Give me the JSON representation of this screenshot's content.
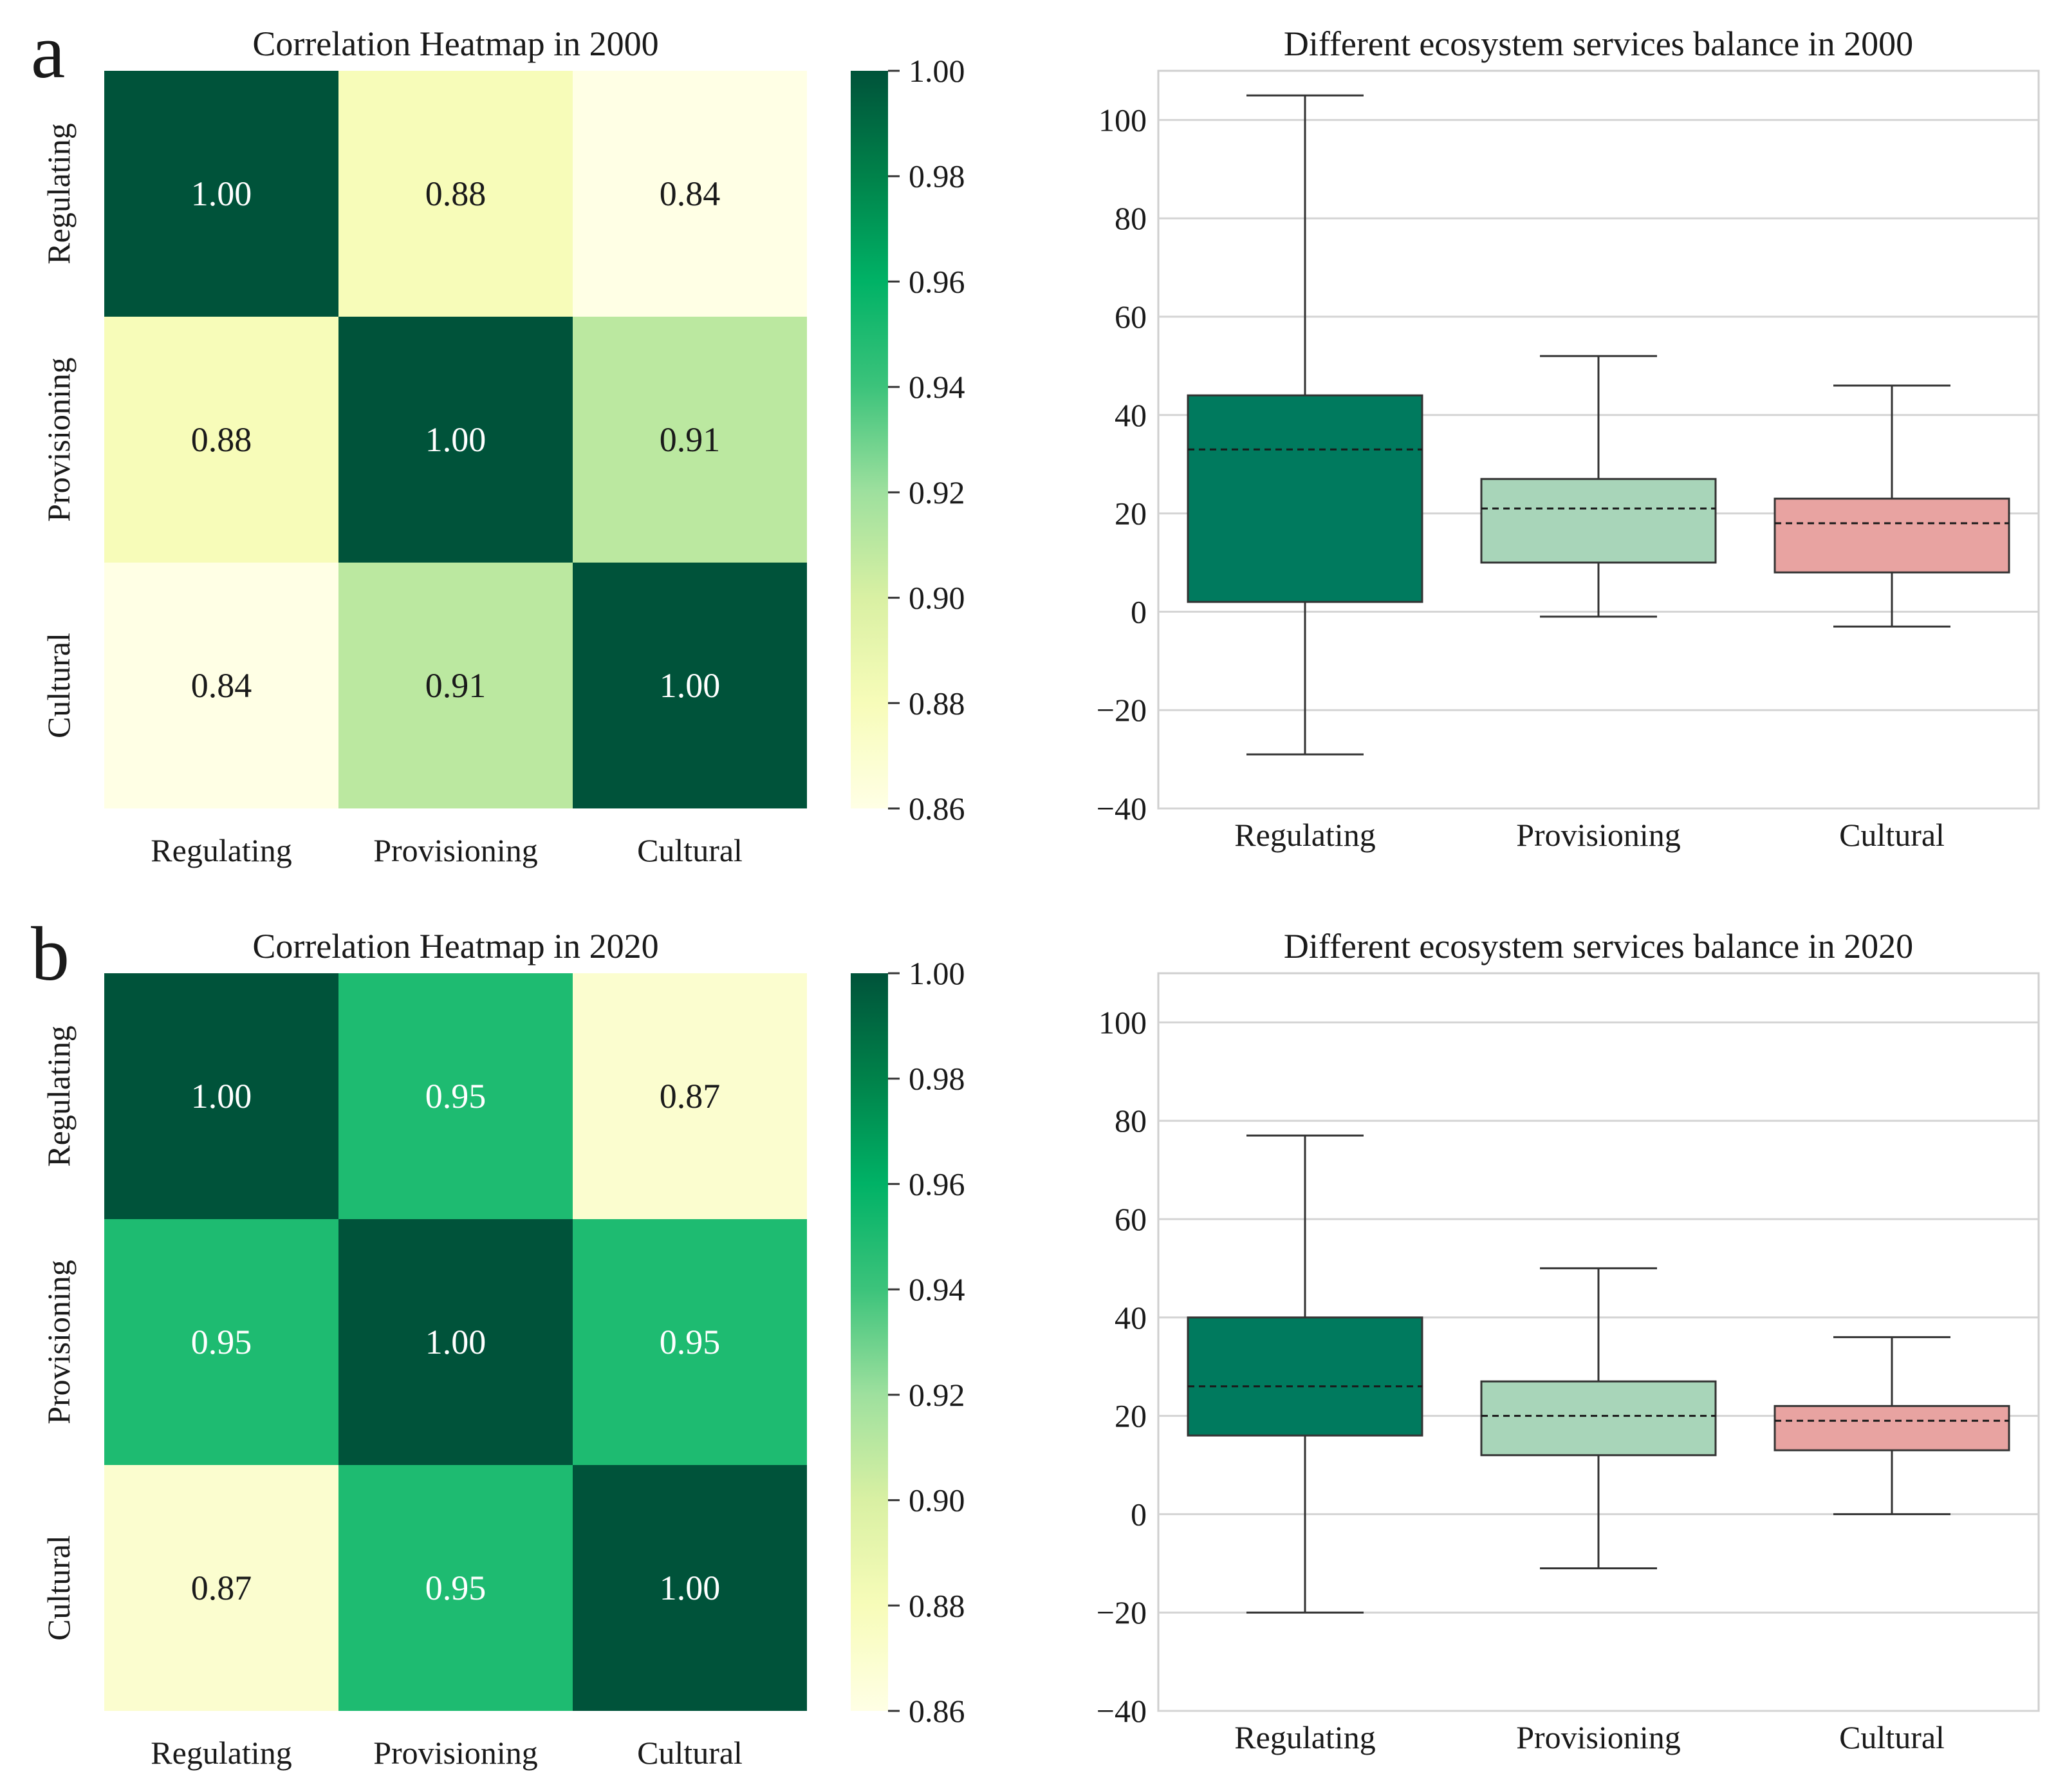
{
  "panels": [
    {
      "letter": "a",
      "heatmap": {
        "title": "Correlation Heatmap in 2000",
        "labels": [
          "Regulating",
          "Provisioning",
          "Cultural"
        ],
        "matrix": [
          [
            1.0,
            0.88,
            0.84
          ],
          [
            0.88,
            1.0,
            0.91
          ],
          [
            0.84,
            0.91,
            1.0
          ]
        ],
        "matrix_text": [
          [
            "1.00",
            "0.88",
            "0.84"
          ],
          [
            "0.88",
            "1.00",
            "0.91"
          ],
          [
            "0.84",
            "0.91",
            "1.00"
          ]
        ],
        "colorbar": {
          "min": 0.86,
          "max": 1.0,
          "ticks": [
            "1.00",
            "0.98",
            "0.96",
            "0.94",
            "0.92",
            "0.90",
            "0.88",
            "0.86"
          ]
        }
      },
      "boxplot": {
        "title": "Different ecosystem services balance in 2000",
        "categories": [
          "Regulating",
          "Provisioning",
          "Cultural"
        ],
        "ylim": [
          -40,
          110
        ],
        "yticks": [
          100,
          80,
          60,
          40,
          20,
          0,
          -20,
          -40
        ],
        "ytick_labels": [
          "100",
          "80",
          "60",
          "40",
          "20",
          "0",
          "−20",
          "−40"
        ],
        "boxes": [
          {
            "min": -29,
            "q1": 2,
            "mean": 33,
            "q3": 44,
            "max": 105,
            "color": "#007a5e"
          },
          {
            "min": -1,
            "q1": 10,
            "mean": 21,
            "q3": 27,
            "max": 52,
            "color": "#a8d5b9"
          },
          {
            "min": -3,
            "q1": 8,
            "mean": 18,
            "q3": 23,
            "max": 46,
            "color": "#e8a3a1"
          }
        ]
      }
    },
    {
      "letter": "b",
      "heatmap": {
        "title": "Correlation Heatmap in 2020",
        "labels": [
          "Regulating",
          "Provisioning",
          "Cultural"
        ],
        "matrix": [
          [
            1.0,
            0.95,
            0.87
          ],
          [
            0.95,
            1.0,
            0.95
          ],
          [
            0.87,
            0.95,
            1.0
          ]
        ],
        "matrix_text": [
          [
            "1.00",
            "0.95",
            "0.87"
          ],
          [
            "0.95",
            "1.00",
            "0.95"
          ],
          [
            "0.87",
            "0.95",
            "1.00"
          ]
        ],
        "colorbar": {
          "min": 0.86,
          "max": 1.0,
          "ticks": [
            "1.00",
            "0.98",
            "0.96",
            "0.94",
            "0.92",
            "0.90",
            "0.88",
            "0.86"
          ]
        }
      },
      "boxplot": {
        "title": "Different ecosystem services balance in 2020",
        "categories": [
          "Regulating",
          "Provisioning",
          "Cultural"
        ],
        "ylim": [
          -40,
          110
        ],
        "yticks": [
          100,
          80,
          60,
          40,
          20,
          0,
          -20,
          -40
        ],
        "ytick_labels": [
          "100",
          "80",
          "60",
          "40",
          "20",
          "0",
          "−20",
          "−40"
        ],
        "boxes": [
          {
            "min": -20,
            "q1": 16,
            "mean": 26,
            "q3": 40,
            "max": 77,
            "color": "#007a5e"
          },
          {
            "min": -11,
            "q1": 12,
            "mean": 20,
            "q3": 27,
            "max": 50,
            "color": "#a8d5b9"
          },
          {
            "min": 0,
            "q1": 13,
            "mean": 19,
            "q3": 22,
            "max": 36,
            "color": "#e8a3a1"
          }
        ]
      }
    }
  ],
  "chart_data": [
    {
      "type": "heatmap",
      "title": "Correlation Heatmap in 2000",
      "x": [
        "Regulating",
        "Provisioning",
        "Cultural"
      ],
      "y": [
        "Regulating",
        "Provisioning",
        "Cultural"
      ],
      "values": [
        [
          1.0,
          0.88,
          0.84
        ],
        [
          0.88,
          1.0,
          0.91
        ],
        [
          0.84,
          0.91,
          1.0
        ]
      ],
      "colorbar_range": [
        0.86,
        1.0
      ]
    },
    {
      "type": "bar",
      "subtype": "boxplot",
      "title": "Different ecosystem services balance in 2000",
      "categories": [
        "Regulating",
        "Provisioning",
        "Cultural"
      ],
      "ylim": [
        -40,
        110
      ],
      "grid": true,
      "stats": [
        {
          "min": -29,
          "q1": 2,
          "mean": 33,
          "q3": 44,
          "max": 105
        },
        {
          "min": -1,
          "q1": 10,
          "mean": 21,
          "q3": 27,
          "max": 52
        },
        {
          "min": -3,
          "q1": 8,
          "mean": 18,
          "q3": 23,
          "max": 46
        }
      ]
    },
    {
      "type": "heatmap",
      "title": "Correlation Heatmap in 2020",
      "x": [
        "Regulating",
        "Provisioning",
        "Cultural"
      ],
      "y": [
        "Regulating",
        "Provisioning",
        "Cultural"
      ],
      "values": [
        [
          1.0,
          0.95,
          0.87
        ],
        [
          0.95,
          1.0,
          0.95
        ],
        [
          0.87,
          0.95,
          1.0
        ]
      ],
      "colorbar_range": [
        0.86,
        1.0
      ]
    },
    {
      "type": "bar",
      "subtype": "boxplot",
      "title": "Different ecosystem services balance in 2020",
      "categories": [
        "Regulating",
        "Provisioning",
        "Cultural"
      ],
      "ylim": [
        -40,
        110
      ],
      "grid": true,
      "stats": [
        {
          "min": -20,
          "q1": 16,
          "mean": 26,
          "q3": 40,
          "max": 77
        },
        {
          "min": -11,
          "q1": 12,
          "mean": 20,
          "q3": 27,
          "max": 50
        },
        {
          "min": 0,
          "q1": 13,
          "mean": 19,
          "q3": 22,
          "max": 36
        }
      ]
    }
  ]
}
